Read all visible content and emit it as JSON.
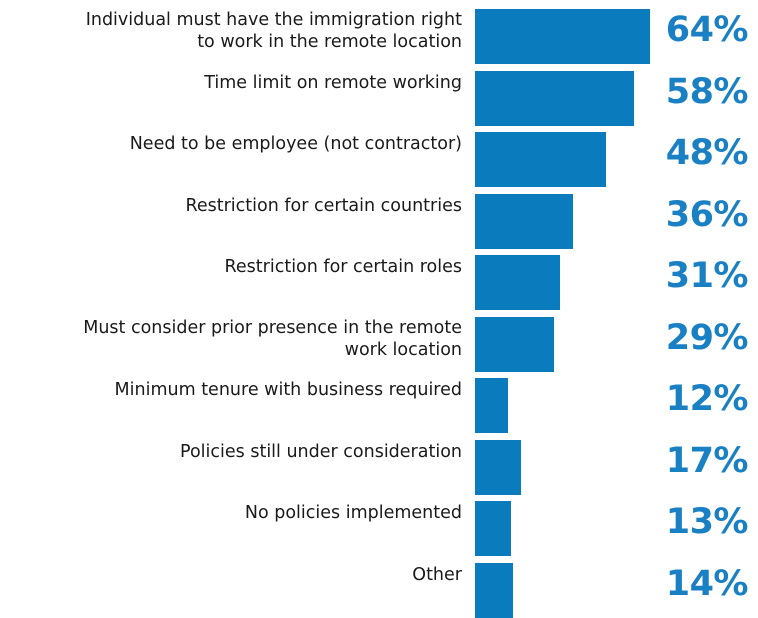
{
  "chart_data": {
    "type": "bar",
    "orientation": "horizontal",
    "categories": [
      "Individual must have the immigration right to work in the remote location",
      "Time limit on remote working",
      "Need to be employee (not contractor)",
      "Restriction for certain countries",
      "Restriction for certain roles",
      "Must consider prior presence in the remote work location",
      "Minimum tenure with business required",
      "Policies still under consideration",
      "No policies implemented",
      "Other"
    ],
    "category_lines": [
      [
        "Individual must have the immigration right",
        "to work in the remote location"
      ],
      [
        "Time limit on remote working"
      ],
      [
        "Need to be employee (not contractor)"
      ],
      [
        "Restriction for certain countries"
      ],
      [
        "Restriction for certain roles"
      ],
      [
        "Must consider prior presence in the remote",
        "work location"
      ],
      [
        "Minimum tenure with business required"
      ],
      [
        "Policies still under consideration"
      ],
      [
        "No policies implemented"
      ],
      [
        "Other"
      ]
    ],
    "values": [
      64,
      58,
      48,
      36,
      31,
      29,
      12,
      17,
      13,
      14
    ],
    "value_labels": [
      "64%",
      "58%",
      "48%",
      "36%",
      "31%",
      "29%",
      "12%",
      "17%",
      "13%",
      "14%"
    ],
    "unit": "%",
    "xlim": [
      0,
      64
    ],
    "grid": false,
    "legend": "none",
    "colors": {
      "bar": "#0a7bbd",
      "value_text": "#1a80c4",
      "label_text": "#1a1a1a"
    }
  }
}
